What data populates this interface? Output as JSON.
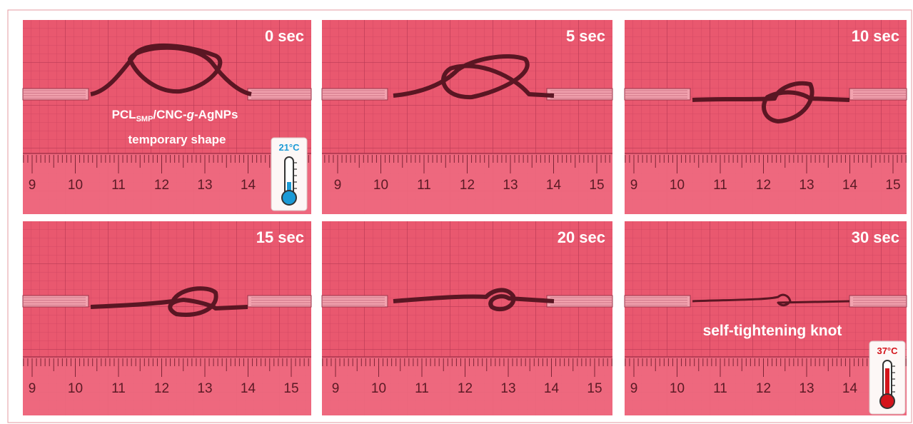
{
  "panels": [
    {
      "time": "0 sec",
      "ruler_labels": [
        9,
        10,
        11,
        12,
        13,
        14
      ]
    },
    {
      "time": "5 sec",
      "ruler_labels": [
        9,
        10,
        11,
        12,
        13,
        14,
        15
      ]
    },
    {
      "time": "10 sec",
      "ruler_labels": [
        9,
        10,
        11,
        12,
        13,
        14,
        15
      ]
    },
    {
      "time": "15 sec",
      "ruler_labels": [
        9,
        10,
        11,
        12,
        13,
        14,
        15
      ]
    },
    {
      "time": "20 sec",
      "ruler_labels": [
        9,
        10,
        11,
        12,
        13,
        14,
        15
      ]
    },
    {
      "time": "30 sec",
      "ruler_labels": [
        9,
        10,
        11,
        12,
        13,
        14
      ]
    }
  ],
  "start_annotation": {
    "material": {
      "main": "PCL",
      "sub": "SMP",
      "middle": "/CNC-",
      "italic": "g",
      "end": "-AgNPs"
    },
    "caption": "temporary shape",
    "temperature": "21°C"
  },
  "end_annotation": {
    "caption": "self-tightening knot",
    "temperature": "37°C"
  }
}
